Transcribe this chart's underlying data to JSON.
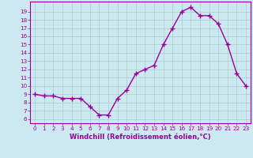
{
  "hours": [
    0,
    1,
    2,
    3,
    4,
    5,
    6,
    7,
    8,
    9,
    10,
    11,
    12,
    13,
    14,
    15,
    16,
    17,
    18,
    19,
    20,
    21,
    22,
    23
  ],
  "values": [
    9.0,
    8.8,
    8.8,
    8.5,
    8.5,
    8.5,
    7.5,
    6.5,
    6.5,
    8.5,
    9.5,
    11.5,
    12.0,
    12.5,
    15.0,
    17.0,
    19.0,
    19.5,
    18.5,
    18.5,
    17.5,
    15.0,
    11.5,
    10.0
  ],
  "line_color": "#990099",
  "marker": "+",
  "marker_size": 4,
  "bg_color": "#cce8f0",
  "grid_color": "#aacccc",
  "xlabel": "Windchill (Refroidissement éolien,°C)",
  "xlabel_color": "#990099",
  "ylabel_ticks": [
    6,
    7,
    8,
    9,
    10,
    11,
    12,
    13,
    14,
    15,
    16,
    17,
    18,
    19
  ],
  "ylim": [
    5.5,
    20.2
  ],
  "xlim": [
    -0.5,
    23.5
  ],
  "tick_label_color": "#990099",
  "axes_color": "#990099",
  "xlabel_fontsize": 6.0,
  "tick_fontsize": 5.2,
  "linewidth": 1.0
}
